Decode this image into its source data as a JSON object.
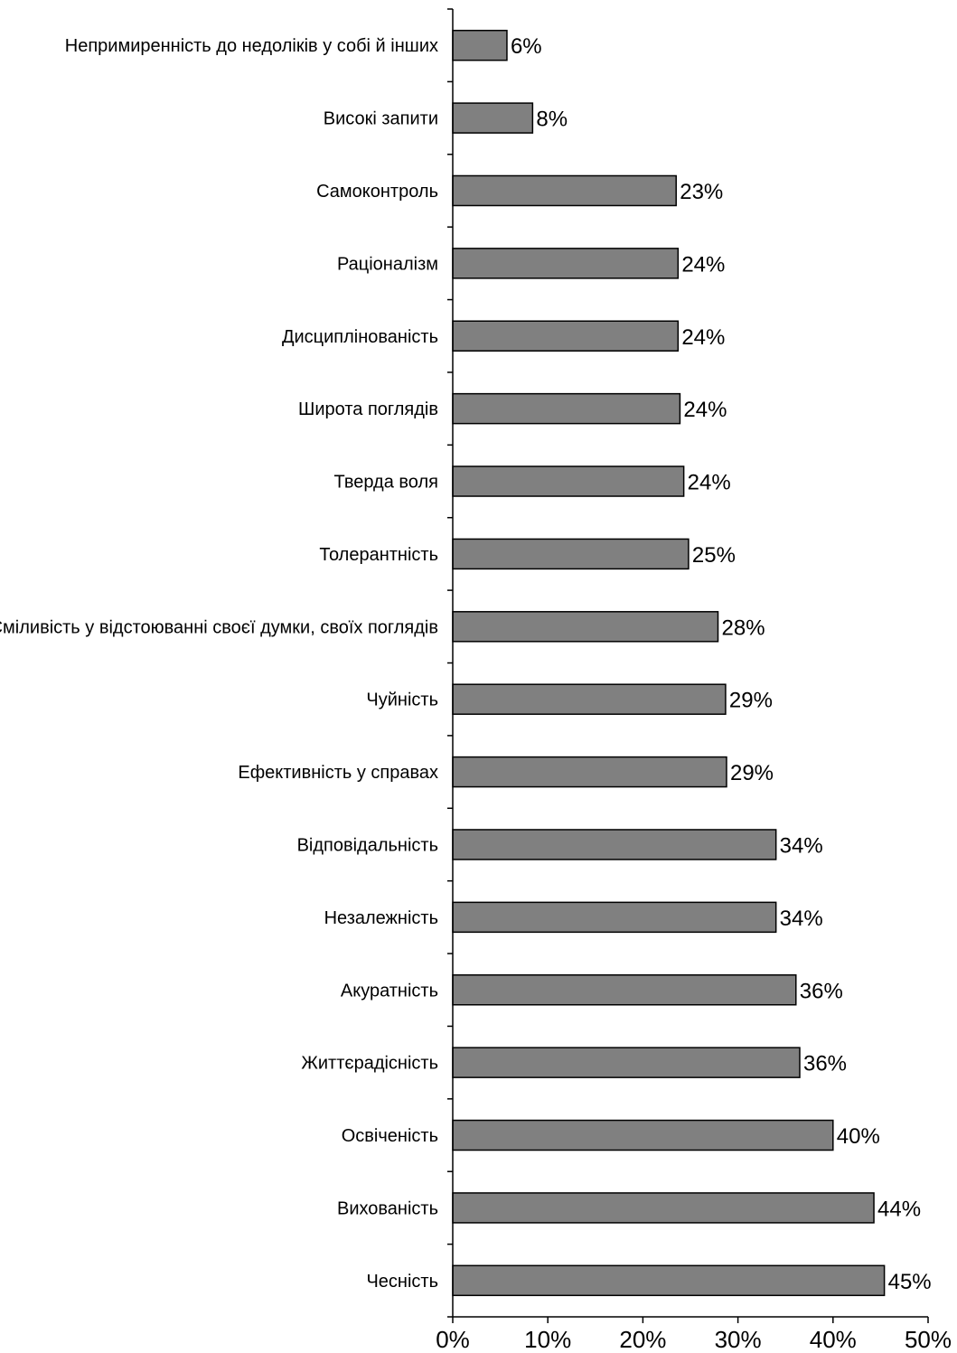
{
  "chart_data": {
    "type": "bar",
    "orientation": "horizontal",
    "categories": [
      "Непримиренність до недоліків у собі й інших",
      "Високі запити",
      "Самоконтроль",
      "Раціоналізм",
      "Дисциплінованість",
      "Широта поглядів",
      "Тверда воля",
      "Толерантність",
      "Сміливість у відстоюванні своєї думки, своїх поглядів",
      "Чуйність",
      "Ефективність у справах",
      "Відповідальність",
      "Незалежність",
      "Акуратність",
      "Життєрадісність",
      "Освіченість",
      "Вихованість",
      "Чесність"
    ],
    "values": [
      5.7,
      8.4,
      23.5,
      23.7,
      23.7,
      23.9,
      24.3,
      24.8,
      27.9,
      28.7,
      28.8,
      34.0,
      34.0,
      36.1,
      36.5,
      40.0,
      44.3,
      45.4
    ],
    "value_labels": [
      "6%",
      "8%",
      "23%",
      "24%",
      "24%",
      "24%",
      "24%",
      "25%",
      "28%",
      "29%",
      "29%",
      "34%",
      "34%",
      "36%",
      "36%",
      "40%",
      "44%",
      "45%"
    ],
    "x_ticks": [
      0,
      10,
      20,
      30,
      40,
      50
    ],
    "x_tick_labels": [
      "0%",
      "10%",
      "20%",
      "30%",
      "40%",
      "50%"
    ],
    "xlim": [
      0,
      50
    ],
    "title": "",
    "xlabel": "",
    "ylabel": "",
    "grid": false,
    "legend": "none",
    "bar_color": "#808080",
    "bar_edge_color": "#000000"
  }
}
